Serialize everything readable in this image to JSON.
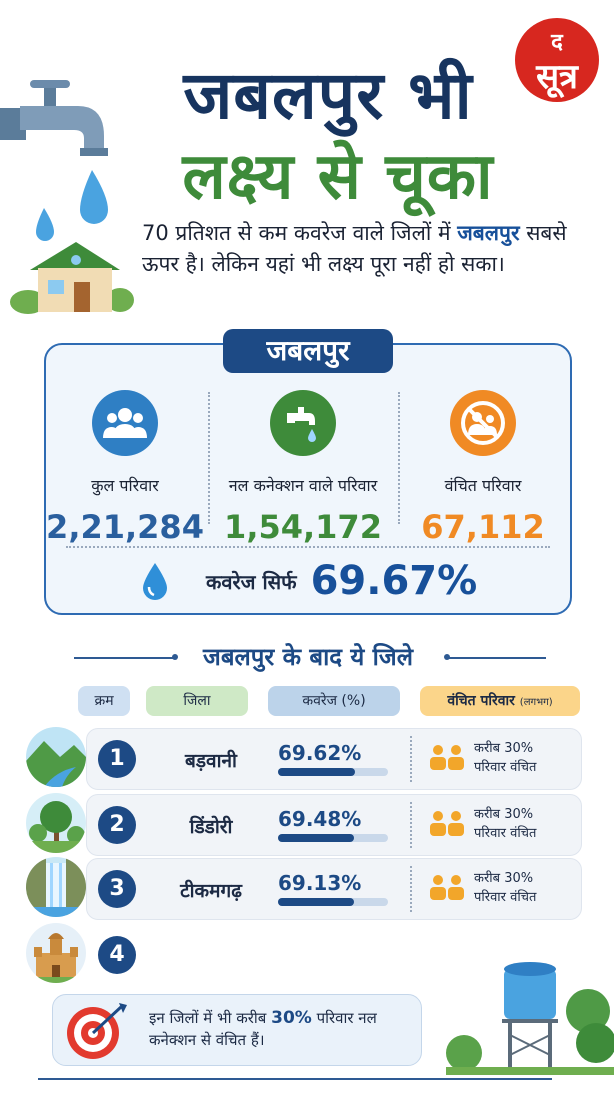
{
  "header": {
    "title_line1": "जबलपुर भी",
    "title_line2": "लक्ष्य से चूका",
    "logo_top": "द",
    "logo_bottom": "सूत्र"
  },
  "intro": {
    "text_before": "70 प्रतिशत से कम कवरेज वाले जिलों में ",
    "highlight": "जबलपुर",
    "text_after": " सबसे ऊपर है। लेकिन यहां भी लक्ष्य पूरा नहीं हो सका।"
  },
  "jabalpur_card": {
    "title": "जबलपुर",
    "stats": [
      {
        "label": "कुल परिवार",
        "value": "2,21,284",
        "icon": "family-icon",
        "color": "#2f7fc4"
      },
      {
        "label": "नल कनेक्शन वाले परिवार",
        "value": "1,54,172",
        "icon": "tap-icon",
        "color": "#3e8b3a"
      },
      {
        "label": "वंचित परिवार",
        "value": "67,112",
        "icon": "deprived-family-icon",
        "color": "#f08a24"
      }
    ],
    "coverage_label": "कवरेज सिर्फ",
    "coverage_value": "69.67%"
  },
  "districts_section": {
    "title": "जबलपुर के बाद ये जिले",
    "headers": {
      "rank": "क्रम",
      "district": "जिला",
      "coverage": "कवरेज (%)",
      "deprived": "वंचित परिवार",
      "deprived_sub": "(लगभग)"
    },
    "rows": [
      {
        "rank": "1",
        "name": "बड़वानी",
        "coverage": "69.62%",
        "coverage_fraction": 0.6962,
        "deprived_line1": "करीब 30%",
        "deprived_line2": "परिवार वंचित",
        "thumb": "river-landscape-icon"
      },
      {
        "rank": "2",
        "name": "डिंडोरी",
        "coverage": "69.48%",
        "coverage_fraction": 0.6948,
        "deprived_line1": "करीब 30%",
        "deprived_line2": "परिवार वंचित",
        "thumb": "tree-landscape-icon"
      },
      {
        "rank": "3",
        "name": "टीकमगढ़",
        "coverage": "69.13%",
        "coverage_fraction": 0.6913,
        "deprived_line1": "करीब 30%",
        "deprived_line2": "परिवार वंचित",
        "thumb": "waterfall-icon"
      },
      {
        "rank": "4",
        "thumb": "fort-icon"
      }
    ]
  },
  "note": {
    "text_before": "इन जिलों में भी करीब ",
    "highlight": "30%",
    "text_after": " परिवार नल कनेक्शन से वंचित हैं।"
  },
  "colors": {
    "navy": "#1d4a85",
    "green": "#3e8b3a",
    "orange": "#f08a24",
    "red": "#d7271f"
  }
}
